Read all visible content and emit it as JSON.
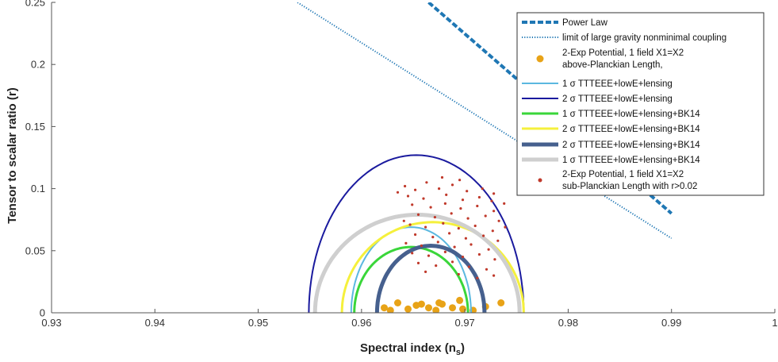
{
  "chart_data": {
    "type": "line",
    "xlabel": "Spectral index (n",
    "xlabel_sub": "s",
    "xlabel_close": ")",
    "ylabel": "Tensor to scalar ratio (r)",
    "xlim": [
      0.93,
      1.0
    ],
    "ylim": [
      0,
      0.25
    ],
    "x_ticks": [
      "0.93",
      "0.94",
      "0.95",
      "0.96",
      "0.97",
      "0.98",
      "0.99",
      "1"
    ],
    "y_ticks": [
      "0",
      "0.05",
      "0.1",
      "0.15",
      "0.2",
      "0.25"
    ],
    "grid": false,
    "legend_position": "top-right",
    "series": [
      {
        "name": "Power Law",
        "kind": "line",
        "color": "#1f77b4",
        "style": "dashed-thick",
        "points": [
          [
            0.9665,
            0.25
          ],
          [
            0.99,
            0.08
          ]
        ]
      },
      {
        "name": "limit of large gravity nonminimal coupling",
        "kind": "line",
        "color": "#1f77b4",
        "style": "dotted",
        "points": [
          [
            0.9538,
            0.25
          ],
          [
            0.99,
            0.06
          ]
        ]
      },
      {
        "name": "2-Exp  Potential, 1 field X1=X2",
        "name2": "above-Planckian Length,",
        "kind": "scatter",
        "color": "#e8a317",
        "size": 4.5,
        "points": [
          [
            0.9622,
            0.004
          ],
          [
            0.9628,
            0.002
          ],
          [
            0.9635,
            0.008
          ],
          [
            0.9645,
            0.003
          ],
          [
            0.9653,
            0.006
          ],
          [
            0.9665,
            0.004
          ],
          [
            0.9672,
            0.002
          ],
          [
            0.9678,
            0.007
          ],
          [
            0.9688,
            0.004
          ],
          [
            0.9698,
            0.003
          ],
          [
            0.9708,
            0.002
          ],
          [
            0.972,
            0.005
          ],
          [
            0.9735,
            0.008
          ],
          [
            0.9695,
            0.01
          ],
          [
            0.9675,
            0.008
          ],
          [
            0.9658,
            0.007
          ]
        ]
      },
      {
        "name": "1 σ TTTEEE+lowE+lensing",
        "kind": "contour",
        "color": "#5bb8e0",
        "width": 2,
        "center": [
          0.9648,
          0.0
        ],
        "rx": 0.0058,
        "ry": 0.069
      },
      {
        "name": "2 σ TTTEEE+lowE+lensing",
        "kind": "contour",
        "color": "#1a1a9e",
        "width": 2,
        "center": [
          0.9653,
          0.0
        ],
        "rx": 0.0104,
        "ry": 0.127
      },
      {
        "name": "1 σ TTTEEE+lowE+lensing+BK14",
        "kind": "contour",
        "color": "#3ad63a",
        "width": 3,
        "center": [
          0.9648,
          0.0
        ],
        "rx": 0.0055,
        "ry": 0.053
      },
      {
        "name": "2 σ TTTEEE+lowE+lensing+BK14",
        "kind": "contour",
        "color": "#f5f03c",
        "width": 3,
        "center": [
          0.9669,
          0.0
        ],
        "rx": 0.0088,
        "ry": 0.073
      },
      {
        "name": "2 σ TTTEEE+lowE+lensing+BK14",
        "kind": "contour",
        "color": "#46608e",
        "width": 5,
        "center": [
          0.9667,
          0.0
        ],
        "rx": 0.0052,
        "ry": 0.054
      },
      {
        "name": "1 σ TTTEEE+lowE+lensing+BK14",
        "kind": "contour",
        "color": "#cfcfcf",
        "width": 5,
        "center": [
          0.9654,
          0.0
        ],
        "rx": 0.0099,
        "ry": 0.079
      },
      {
        "name": "2-Exp Potential, 1 field X1=X2",
        "name2": "sub-Planckian Length with r>0.02",
        "kind": "scatter",
        "color": "#c0392b",
        "size": 1.6,
        "points": [
          [
            0.9642,
            0.102
          ],
          [
            0.9652,
            0.099
          ],
          [
            0.9663,
            0.105
          ],
          [
            0.9675,
            0.1
          ],
          [
            0.9688,
            0.103
          ],
          [
            0.9702,
            0.098
          ],
          [
            0.9717,
            0.1
          ],
          [
            0.9728,
            0.096
          ],
          [
            0.9645,
            0.094
          ],
          [
            0.966,
            0.092
          ],
          [
            0.9682,
            0.095
          ],
          [
            0.9698,
            0.091
          ],
          [
            0.9714,
            0.093
          ],
          [
            0.9726,
            0.09
          ],
          [
            0.9649,
            0.087
          ],
          [
            0.9667,
            0.085
          ],
          [
            0.9681,
            0.088
          ],
          [
            0.9696,
            0.084
          ],
          [
            0.9712,
            0.086
          ],
          [
            0.9728,
            0.082
          ],
          [
            0.9655,
            0.079
          ],
          [
            0.9671,
            0.077
          ],
          [
            0.9687,
            0.08
          ],
          [
            0.9703,
            0.076
          ],
          [
            0.972,
            0.078
          ],
          [
            0.9733,
            0.074
          ],
          [
            0.9647,
            0.071
          ],
          [
            0.9662,
            0.069
          ],
          [
            0.9679,
            0.072
          ],
          [
            0.9694,
            0.068
          ],
          [
            0.971,
            0.07
          ],
          [
            0.9727,
            0.066
          ],
          [
            0.9652,
            0.063
          ],
          [
            0.9669,
            0.061
          ],
          [
            0.9685,
            0.064
          ],
          [
            0.9701,
            0.06
          ],
          [
            0.9718,
            0.062
          ],
          [
            0.9732,
            0.058
          ],
          [
            0.9643,
            0.056
          ],
          [
            0.9658,
            0.054
          ],
          [
            0.9674,
            0.057
          ],
          [
            0.969,
            0.053
          ],
          [
            0.9706,
            0.055
          ],
          [
            0.9723,
            0.051
          ],
          [
            0.9649,
            0.048
          ],
          [
            0.9665,
            0.046
          ],
          [
            0.9681,
            0.049
          ],
          [
            0.9698,
            0.045
          ],
          [
            0.9714,
            0.047
          ],
          [
            0.9729,
            0.043
          ],
          [
            0.9655,
            0.04
          ],
          [
            0.9672,
            0.038
          ],
          [
            0.9688,
            0.041
          ],
          [
            0.9704,
            0.037
          ],
          [
            0.9721,
            0.035
          ],
          [
            0.9678,
            0.109
          ],
          [
            0.9695,
            0.107
          ],
          [
            0.9635,
            0.097
          ],
          [
            0.9738,
            0.088
          ],
          [
            0.9641,
            0.074
          ],
          [
            0.9739,
            0.069
          ],
          [
            0.9662,
            0.033
          ],
          [
            0.9694,
            0.031
          ],
          [
            0.9712,
            0.028
          ],
          [
            0.9728,
            0.03
          ]
        ]
      }
    ]
  }
}
